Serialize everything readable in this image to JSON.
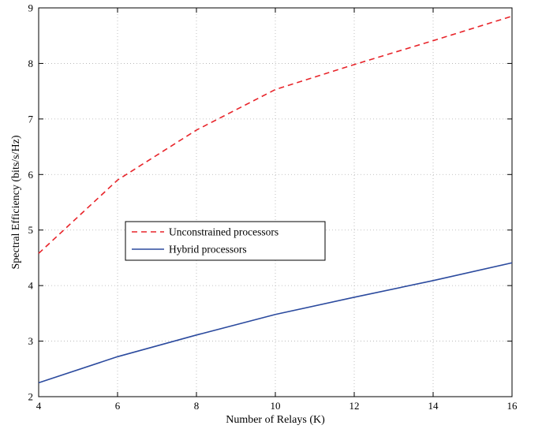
{
  "chart_data": {
    "type": "line",
    "xlabel": "Number of Relays (K)",
    "ylabel": "Spectral Efficiency (bits/s/Hz)",
    "xlim": [
      4,
      16
    ],
    "ylim": [
      2,
      9
    ],
    "xticks": [
      4,
      6,
      8,
      10,
      12,
      14,
      16
    ],
    "yticks": [
      2,
      3,
      4,
      5,
      6,
      7,
      8,
      9
    ],
    "grid": true,
    "legend_position": "center-left",
    "x": [
      4,
      6,
      8,
      10,
      12,
      14,
      16
    ],
    "series": [
      {
        "name": "Unconstrained processors",
        "values": [
          4.58,
          5.9,
          6.8,
          7.53,
          7.98,
          8.41,
          8.85
        ],
        "color": "#e8242a",
        "dash": "dashed"
      },
      {
        "name": "Hybrid processors",
        "values": [
          2.25,
          2.72,
          3.11,
          3.48,
          3.79,
          4.09,
          4.41
        ],
        "color": "#2b4a9e",
        "dash": "solid"
      }
    ]
  }
}
